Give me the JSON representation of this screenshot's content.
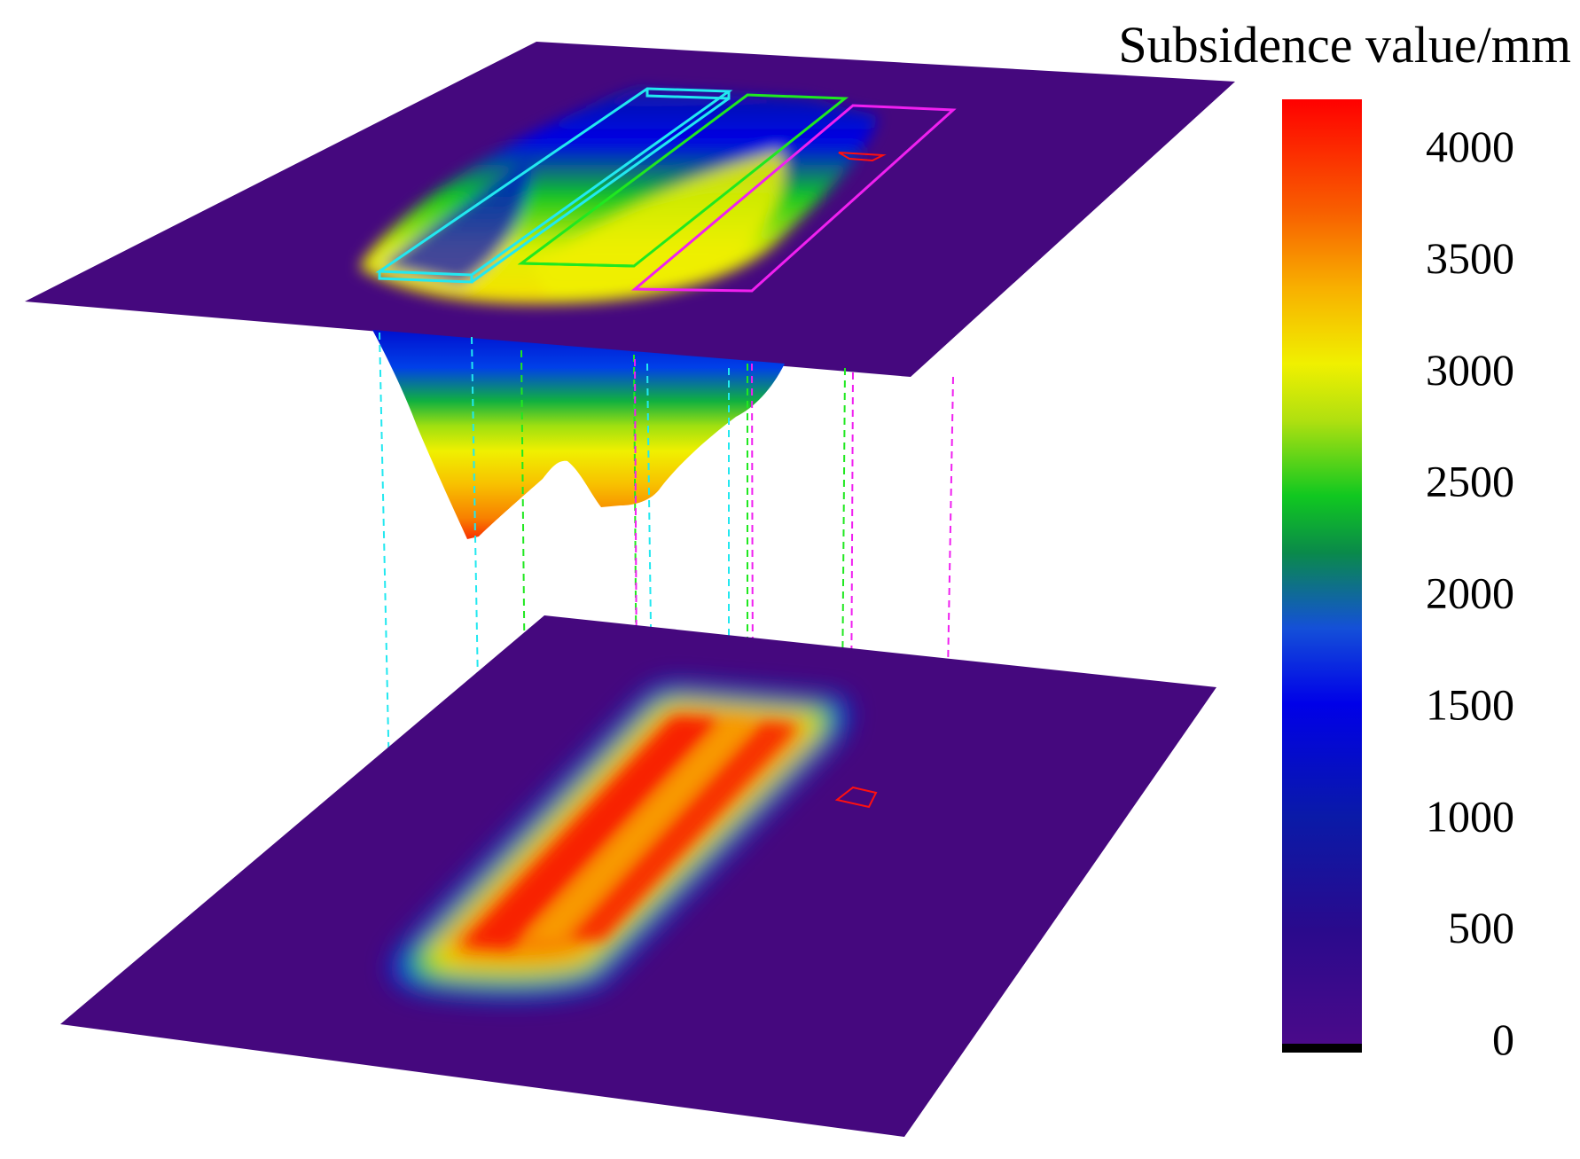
{
  "colorbar": {
    "title": "Subsidence value/mm",
    "ticks": [
      "4000",
      "3500",
      "3000",
      "2500",
      "2000",
      "1500",
      "1000",
      "500",
      "0"
    ],
    "range": [
      0,
      4200
    ],
    "stops": [
      "#000000",
      "#4a0a8a",
      "#2a0a8c",
      "#0a1aa8",
      "#0000e8",
      "#1450d8",
      "#0a8a6a",
      "#10c820",
      "#b0e010",
      "#f0f000",
      "#f8c000",
      "#f88000",
      "#f83000",
      "#ff0000"
    ]
  },
  "surface_color": "#45087e",
  "panel_colors": {
    "cyan": "#22e8f0",
    "green": "#20e820",
    "magenta": "#f020f0",
    "red": "#ff1010"
  }
}
